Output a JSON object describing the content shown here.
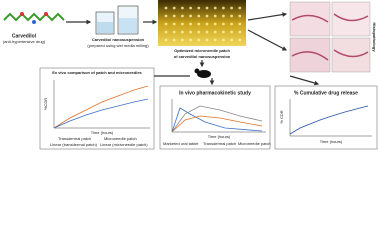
{
  "top": {
    "drug": {
      "name": "Carvedilol",
      "note": "(anti-hypertensive drug)"
    },
    "nanosuspension": {
      "name": "Carvedilol nanosuspension",
      "note": "(prepared using wet media milling)"
    },
    "patch": {
      "line1": "Optimized microneedle patch",
      "line2": "of carvedilol nanosuspension"
    },
    "histology": "Histopathology"
  },
  "panels": [
    {
      "title": "Ex vivo comparison of patch and microneedles",
      "y_label": "%CDR",
      "x_label": "Time (hours)",
      "legend": [
        "Transdermal patch",
        "Microneedle patch",
        "Linear (transdermal patch)",
        "Linear (microneedle patch)"
      ]
    },
    {
      "title": "In vivo pharmacokinetic study",
      "x_label": "Time (hours)",
      "legend": [
        "Marketed oral tablet",
        "Transdermal patch",
        "Microneedle patch"
      ]
    },
    {
      "title": "% Cumulative drug release",
      "y_label": "% CDR",
      "x_label": "Time (hours)"
    }
  ]
}
